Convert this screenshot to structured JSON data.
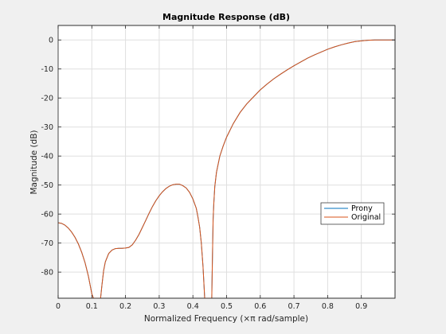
{
  "chart_data": {
    "type": "line",
    "title": "Magnitude Response (dB)",
    "xlabel": "Normalized Frequency (×π rad/sample)",
    "ylabel": "Magnitude (dB)",
    "xlim": [
      0,
      1
    ],
    "ylim": [
      -89,
      5
    ],
    "x_ticks": [
      0,
      0.1,
      0.2,
      0.3,
      0.4,
      0.5,
      0.6,
      0.7,
      0.8,
      0.9
    ],
    "x_tick_labels": [
      "0",
      "0.1",
      "0.2",
      "0.3",
      "0.4",
      "0.5",
      "0.6",
      "0.7",
      "0.8",
      "0.9"
    ],
    "y_ticks": [
      0,
      -10,
      -20,
      -30,
      -40,
      -50,
      -60,
      -70,
      -80
    ],
    "y_tick_labels": [
      "0",
      "-10",
      "-20",
      "-30",
      "-40",
      "-50",
      "-60",
      "-70",
      "-80"
    ],
    "grid": true,
    "legend_position": "right",
    "series": [
      {
        "name": "Prony",
        "color": "#0072bd",
        "x": [
          0,
          0.01,
          0.02,
          0.03,
          0.04,
          0.05,
          0.06,
          0.07,
          0.08,
          0.09,
          0.1,
          0.105,
          0.11,
          0.114,
          0.117,
          0.12,
          0.123,
          0.126,
          0.13,
          0.135,
          0.14,
          0.15,
          0.16,
          0.17,
          0.18,
          0.19,
          0.2,
          0.21,
          0.22,
          0.23,
          0.24,
          0.25,
          0.26,
          0.27,
          0.28,
          0.29,
          0.3,
          0.31,
          0.32,
          0.33,
          0.34,
          0.35,
          0.36,
          0.37,
          0.38,
          0.39,
          0.4,
          0.41,
          0.415,
          0.42,
          0.425,
          0.43,
          0.435,
          0.44,
          0.445,
          0.45,
          0.453,
          0.456,
          0.458,
          0.46,
          0.462,
          0.465,
          0.47,
          0.48,
          0.49,
          0.5,
          0.52,
          0.54,
          0.56,
          0.58,
          0.6,
          0.62,
          0.64,
          0.66,
          0.68,
          0.7,
          0.72,
          0.74,
          0.76,
          0.78,
          0.8,
          0.82,
          0.84,
          0.86,
          0.88,
          0.9,
          0.92,
          0.94,
          0.95,
          0.96,
          0.97,
          0.98,
          0.99,
          1.0
        ],
        "y": [
          -63,
          -63.2,
          -63.8,
          -64.8,
          -66.2,
          -68,
          -70.3,
          -73.2,
          -76.8,
          -81.5,
          -87.5,
          -89,
          -89,
          -89,
          -89,
          -89,
          -89,
          -89,
          -84.5,
          -79.5,
          -76.5,
          -73.6,
          -72.4,
          -71.9,
          -71.8,
          -71.8,
          -71.7,
          -71.5,
          -70.6,
          -69,
          -67,
          -64.6,
          -62.2,
          -59.7,
          -57.4,
          -55.4,
          -53.7,
          -52.3,
          -51.2,
          -50.4,
          -49.9,
          -49.7,
          -49.7,
          -50.2,
          -51,
          -52.5,
          -54.8,
          -58,
          -61,
          -64.5,
          -70,
          -78,
          -89,
          -89,
          -89,
          -89,
          -89,
          -89,
          -75,
          -62,
          -56.5,
          -50.5,
          -45.6,
          -40,
          -36.5,
          -33.5,
          -28.8,
          -25,
          -22,
          -19.6,
          -17.2,
          -15.2,
          -13.4,
          -11.8,
          -10.3,
          -8.9,
          -7.6,
          -6.3,
          -5.2,
          -4.2,
          -3.2,
          -2.4,
          -1.7,
          -1.1,
          -0.6,
          -0.3,
          -0.1,
          0,
          0,
          0,
          0,
          0,
          0,
          0
        ]
      },
      {
        "name": "Original",
        "color": "#d95319",
        "x": [
          0,
          0.01,
          0.02,
          0.03,
          0.04,
          0.05,
          0.06,
          0.07,
          0.08,
          0.09,
          0.1,
          0.105,
          0.11,
          0.114,
          0.117,
          0.12,
          0.123,
          0.126,
          0.13,
          0.135,
          0.14,
          0.15,
          0.16,
          0.17,
          0.18,
          0.19,
          0.2,
          0.21,
          0.22,
          0.23,
          0.24,
          0.25,
          0.26,
          0.27,
          0.28,
          0.29,
          0.3,
          0.31,
          0.32,
          0.33,
          0.34,
          0.35,
          0.36,
          0.37,
          0.38,
          0.39,
          0.4,
          0.41,
          0.415,
          0.42,
          0.425,
          0.43,
          0.435,
          0.44,
          0.445,
          0.45,
          0.453,
          0.456,
          0.458,
          0.46,
          0.462,
          0.465,
          0.47,
          0.48,
          0.49,
          0.5,
          0.52,
          0.54,
          0.56,
          0.58,
          0.6,
          0.62,
          0.64,
          0.66,
          0.68,
          0.7,
          0.72,
          0.74,
          0.76,
          0.78,
          0.8,
          0.82,
          0.84,
          0.86,
          0.88,
          0.9,
          0.92,
          0.94,
          0.95,
          0.96,
          0.97,
          0.98,
          0.99,
          1.0
        ],
        "y": [
          -63,
          -63.2,
          -63.8,
          -64.8,
          -66.2,
          -68,
          -70.3,
          -73.2,
          -76.8,
          -81.5,
          -87.5,
          -89,
          -89,
          -89,
          -89,
          -89,
          -89,
          -89,
          -84.5,
          -79.5,
          -76.5,
          -73.6,
          -72.4,
          -71.9,
          -71.8,
          -71.8,
          -71.7,
          -71.5,
          -70.6,
          -69,
          -67,
          -64.6,
          -62.2,
          -59.7,
          -57.4,
          -55.4,
          -53.7,
          -52.3,
          -51.2,
          -50.4,
          -49.9,
          -49.7,
          -49.7,
          -50.2,
          -51,
          -52.5,
          -54.8,
          -58,
          -61,
          -64.5,
          -70,
          -78,
          -89,
          -89,
          -89,
          -89,
          -89,
          -89,
          -75,
          -62,
          -56.5,
          -50.5,
          -45.6,
          -40,
          -36.5,
          -33.5,
          -28.8,
          -25,
          -22,
          -19.6,
          -17.2,
          -15.2,
          -13.4,
          -11.8,
          -10.3,
          -8.9,
          -7.6,
          -6.3,
          -5.2,
          -4.2,
          -3.2,
          -2.4,
          -1.7,
          -1.1,
          -0.6,
          -0.3,
          -0.1,
          0,
          0,
          0,
          0,
          0,
          0,
          0
        ]
      }
    ]
  }
}
